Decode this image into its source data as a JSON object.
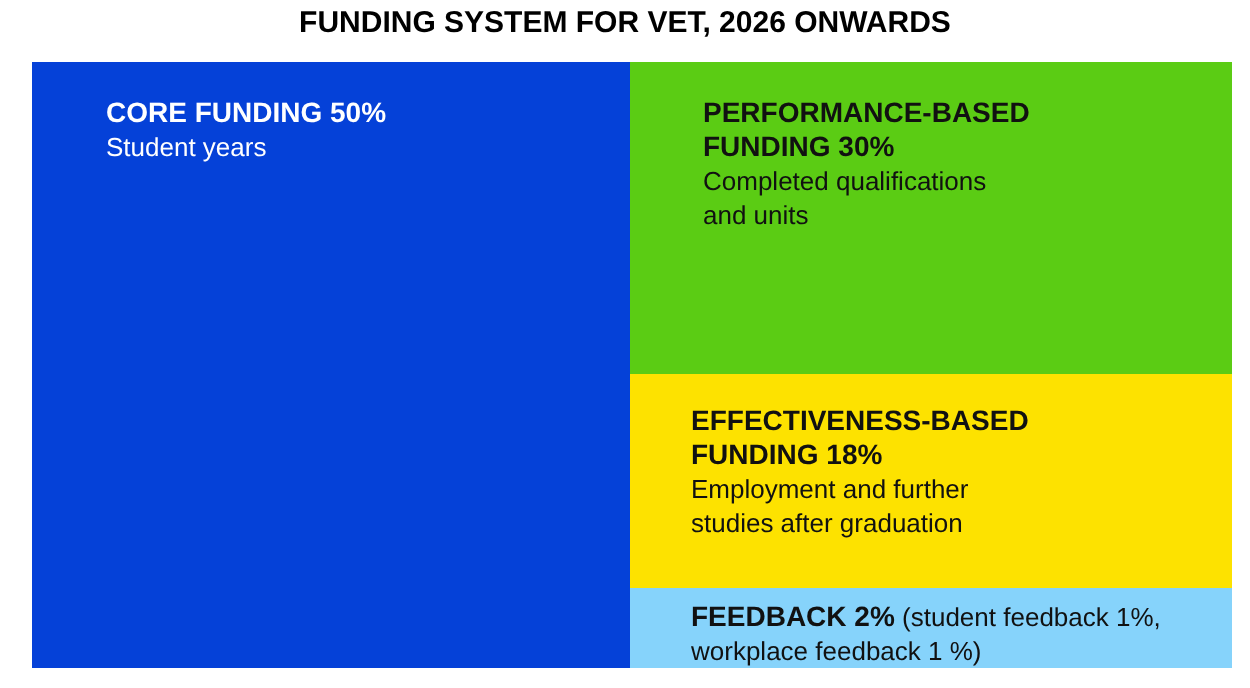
{
  "chart_data": {
    "type": "other",
    "title": "FUNDING SYSTEM FOR VET, 2026 ONWARDS",
    "categories": [
      "CORE FUNDING",
      "PERFORMANCE-BASED FUNDING",
      "EFFECTIVENESS-BASED FUNDING",
      "FEEDBACK"
    ],
    "values": [
      50,
      30,
      18,
      2
    ],
    "value_labels": [
      "50%",
      "30%",
      "18%",
      "2%"
    ],
    "colors": [
      "#0541d8",
      "#5bcc14",
      "#fde200",
      "#86d3fb"
    ],
    "annotations": [
      "Student years",
      "Completed qualifications and units",
      "Employment and further studies after graduation",
      "(student feedback 1%, workplace feedback 1 %)"
    ]
  }
}
